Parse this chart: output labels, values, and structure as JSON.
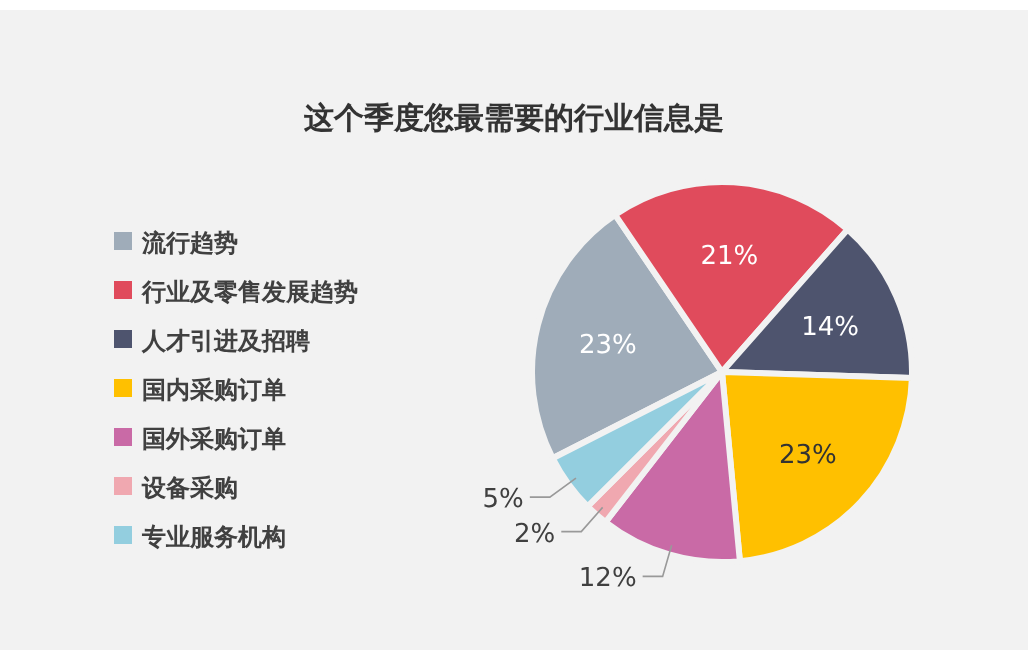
{
  "chart_data": {
    "type": "pie",
    "title": "这个季度您最需要的行业信息是",
    "categories": [
      "流行趋势",
      "行业及零售发展趋势",
      "人才引进及招聘",
      "国内采购订单",
      "国外采购订单",
      "设备采购",
      "专业服务机构"
    ],
    "values": [
      23,
      21,
      14,
      23,
      12,
      2,
      5
    ],
    "value_labels": [
      "23%",
      "21%",
      "14%",
      "23%",
      "12%",
      "2%",
      "5%"
    ],
    "colors": [
      "#9facb9",
      "#e04b5c",
      "#4e546e",
      "#ffc000",
      "#c96aa6",
      "#f0a8b0",
      "#93cedf"
    ],
    "legend": "left"
  }
}
